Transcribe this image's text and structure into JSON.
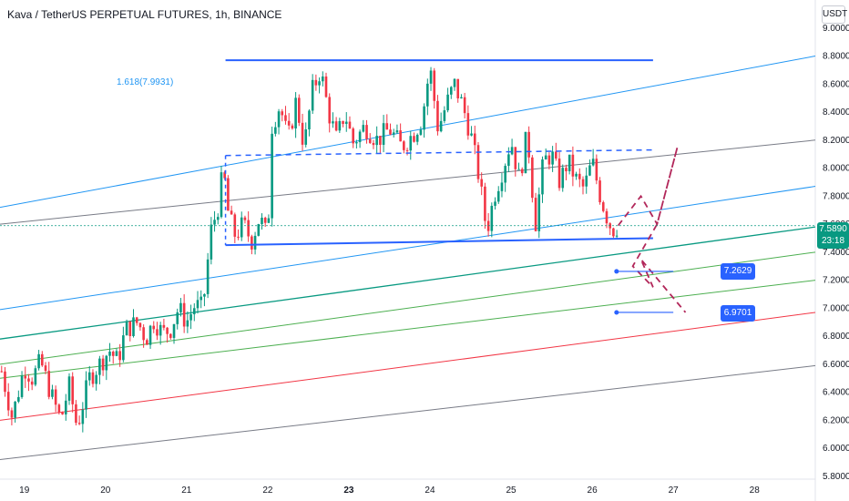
{
  "header": {
    "title": "Kava / TetherUS PERPETUAL FUTURES, 1h, BINANCE",
    "currency": "USDT"
  },
  "last_price": {
    "value": "7.5890",
    "countdown": "23:18"
  },
  "targets": [
    "7.2629",
    "6.9701"
  ],
  "fib_label": "1.618(7.9931)",
  "colors": {
    "up": "#089981",
    "down": "#f23645",
    "blue": "#2196f3",
    "bold_blue": "#2962ff",
    "gray": "#787b86",
    "green": "#089981",
    "light_green": "#4caf50",
    "red_line": "#f23645",
    "dashed_path": "#b2275a"
  },
  "chart_data": {
    "type": "candlestick",
    "title": "Kava / TetherUS PERPETUAL FUTURES, 1h, BINANCE",
    "x_axis": {
      "ticks": [
        "19",
        "20",
        "21",
        "22",
        "23",
        "24",
        "25",
        "26",
        "27",
        "28"
      ],
      "range": [
        18.7,
        28.75
      ]
    },
    "y_axis": {
      "ticks": [
        "9.0000",
        "8.8000",
        "8.6000",
        "8.4000",
        "8.2000",
        "8.0000",
        "7.8000",
        "7.6000",
        "7.4000",
        "7.2000",
        "7.0000",
        "6.8000",
        "6.6000",
        "6.4000",
        "6.2000",
        "6.0000",
        "5.8000"
      ],
      "range": [
        5.78,
        9.2
      ],
      "side": "right"
    },
    "price_path": [
      [
        18.72,
        6.55
      ],
      [
        18.85,
        6.22
      ],
      [
        19.0,
        6.58
      ],
      [
        19.1,
        6.5
      ],
      [
        19.2,
        6.62
      ],
      [
        19.35,
        6.35
      ],
      [
        19.45,
        6.2
      ],
      [
        19.55,
        6.45
      ],
      [
        19.65,
        6.15
      ],
      [
        19.8,
        6.5
      ],
      [
        19.9,
        6.58
      ],
      [
        20.05,
        6.7
      ],
      [
        20.15,
        6.62
      ],
      [
        20.25,
        6.85
      ],
      [
        20.4,
        6.9
      ],
      [
        20.5,
        6.78
      ],
      [
        20.6,
        6.92
      ],
      [
        20.7,
        6.82
      ],
      [
        20.8,
        6.85
      ],
      [
        20.9,
        7.0
      ],
      [
        21.0,
        6.9
      ],
      [
        21.1,
        7.02
      ],
      [
        21.2,
        7.0
      ],
      [
        21.3,
        7.55
      ],
      [
        21.4,
        7.75
      ],
      [
        21.45,
        8.0
      ],
      [
        21.52,
        7.65
      ],
      [
        21.6,
        7.52
      ],
      [
        21.7,
        7.6
      ],
      [
        21.8,
        7.48
      ],
      [
        21.9,
        7.65
      ],
      [
        22.0,
        7.5
      ],
      [
        22.05,
        8.3
      ],
      [
        22.15,
        8.45
      ],
      [
        22.25,
        8.2
      ],
      [
        22.35,
        8.48
      ],
      [
        22.45,
        8.15
      ],
      [
        22.55,
        8.55
      ],
      [
        22.65,
        8.7
      ],
      [
        22.75,
        8.4
      ],
      [
        22.85,
        8.2
      ],
      [
        22.95,
        8.4
      ],
      [
        23.05,
        8.18
      ],
      [
        23.2,
        8.3
      ],
      [
        23.35,
        8.2
      ],
      [
        23.5,
        8.28
      ],
      [
        23.65,
        8.15
      ],
      [
        23.8,
        8.25
      ],
      [
        23.9,
        8.35
      ],
      [
        24.0,
        8.72
      ],
      [
        24.1,
        8.28
      ],
      [
        24.2,
        8.45
      ],
      [
        24.3,
        8.6
      ],
      [
        24.4,
        8.45
      ],
      [
        24.5,
        8.25
      ],
      [
        24.6,
        7.95
      ],
      [
        24.7,
        7.55
      ],
      [
        24.8,
        7.82
      ],
      [
        24.9,
        8.0
      ],
      [
        25.0,
        8.2
      ],
      [
        25.1,
        7.92
      ],
      [
        25.2,
        8.25
      ],
      [
        25.3,
        7.6
      ],
      [
        25.4,
        8.05
      ],
      [
        25.5,
        8.1
      ],
      [
        25.6,
        7.9
      ],
      [
        25.7,
        8.05
      ],
      [
        25.8,
        7.92
      ],
      [
        25.9,
        7.85
      ],
      [
        26.0,
        8.05
      ],
      [
        26.1,
        7.8
      ],
      [
        26.2,
        7.62
      ],
      [
        26.25,
        7.56
      ],
      [
        26.32,
        7.59
      ]
    ],
    "levels": {
      "range_top": 8.77,
      "range_bottom_left": 7.45,
      "range_bottom_right": 7.5,
      "dashed_mid_left": 8.09,
      "dashed_mid_right": 8.13
    },
    "projection_path": [
      [
        26.32,
        7.59
      ],
      [
        26.6,
        7.8
      ],
      [
        26.8,
        7.6
      ],
      [
        27.05,
        8.15
      ],
      [
        26.8,
        7.6
      ],
      [
        26.5,
        7.3
      ],
      [
        26.75,
        7.15
      ],
      [
        26.6,
        7.35
      ],
      [
        27.15,
        6.97
      ]
    ],
    "channels": [
      {
        "style": "blue",
        "x": [
          18.7,
          28.75
        ],
        "y": [
          7.72,
          8.8
        ]
      },
      {
        "style": "gray",
        "x": [
          18.7,
          28.75
        ],
        "y": [
          5.92,
          6.59
        ]
      },
      {
        "style": "gray",
        "x": [
          18.7,
          28.75
        ],
        "y": [
          7.6,
          8.2
        ]
      },
      {
        "style": "blue",
        "x": [
          18.7,
          28.75
        ],
        "y": [
          6.99,
          7.87
        ]
      },
      {
        "style": "green",
        "x": [
          18.7,
          28.75
        ],
        "y": [
          6.78,
          7.58
        ]
      },
      {
        "style": "light_green",
        "x": [
          18.7,
          28.75
        ],
        "y": [
          6.6,
          7.4
        ]
      },
      {
        "style": "light_green",
        "x": [
          18.7,
          28.75
        ],
        "y": [
          6.5,
          7.2
        ]
      },
      {
        "style": "red",
        "x": [
          18.7,
          28.75
        ],
        "y": [
          6.2,
          6.97
        ]
      }
    ]
  }
}
